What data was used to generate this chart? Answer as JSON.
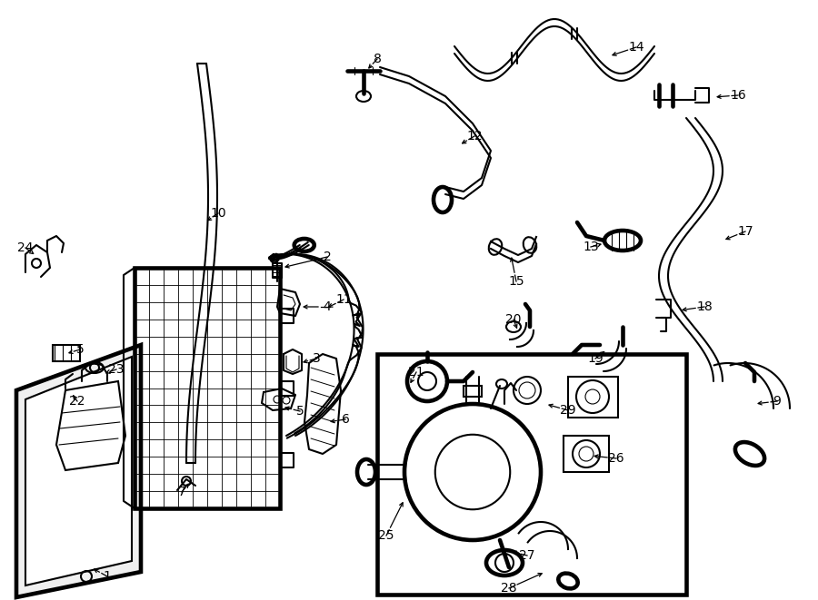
{
  "bg_color": "#ffffff",
  "line_color": "#000000",
  "lw": 1.5,
  "fig_w": 9.0,
  "fig_h": 6.61,
  "dpi": 100,
  "label_fontsize": 10,
  "arrow_fontsize": 9
}
